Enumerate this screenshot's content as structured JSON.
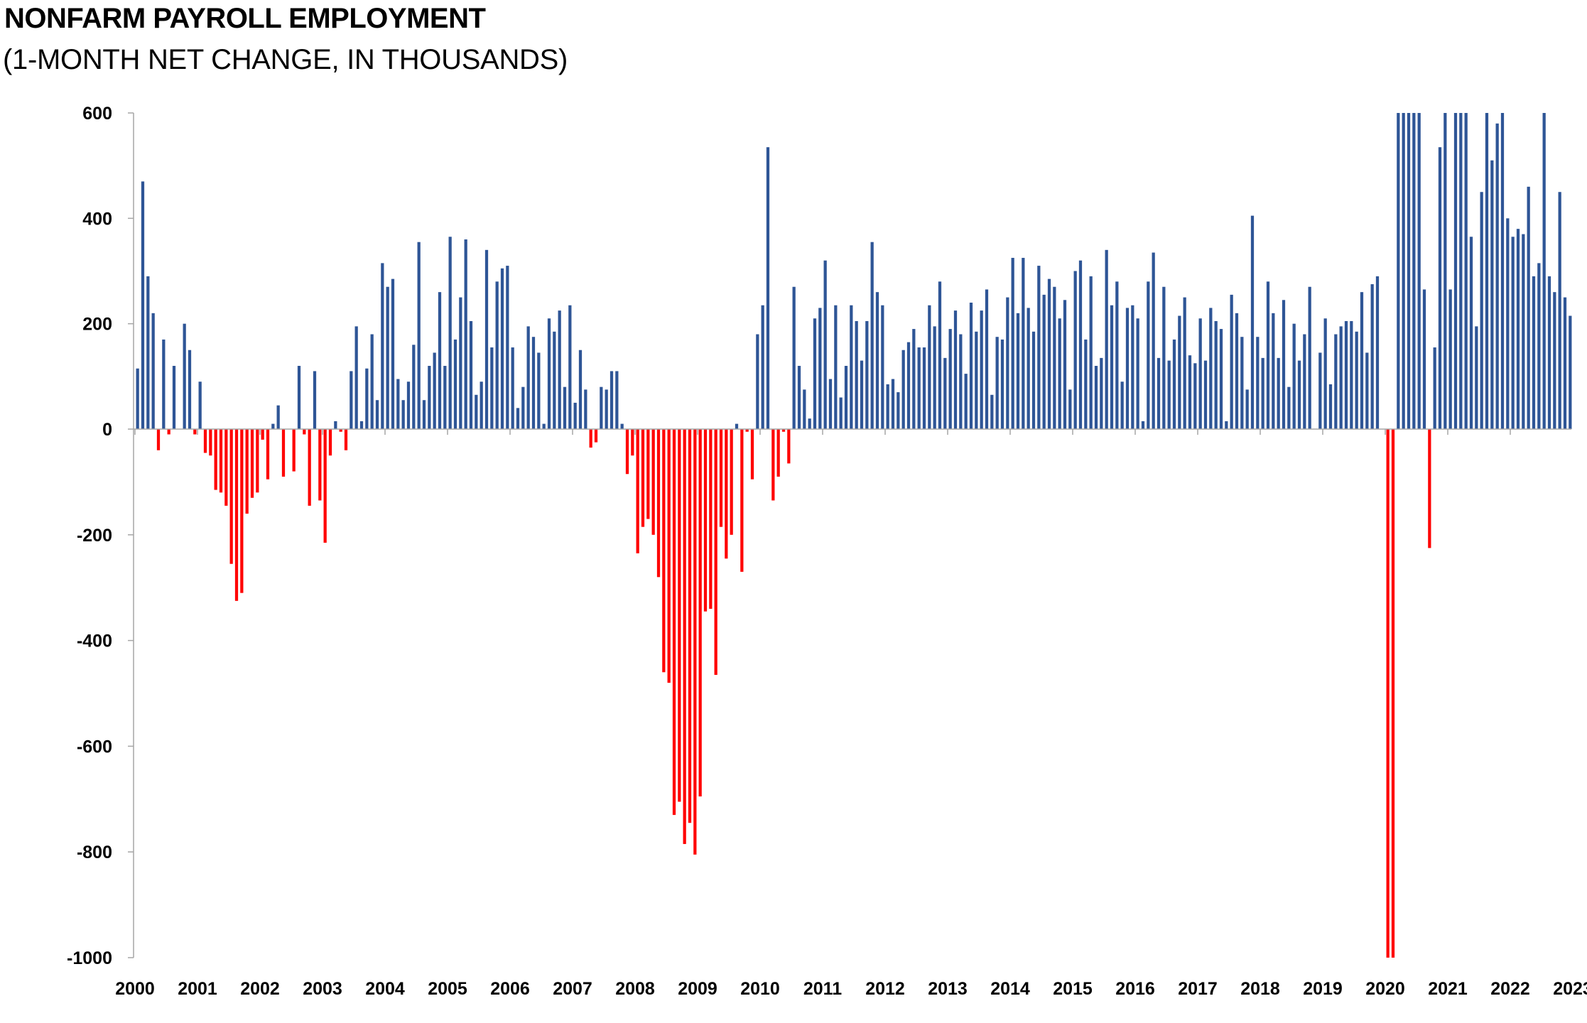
{
  "chart_data": {
    "type": "bar",
    "title": "NONFARM PAYROLL EMPLOYMENT",
    "subtitle": "(1-MONTH NET CHANGE, IN THOUSANDS)",
    "xlabel": "",
    "ylabel": "",
    "ylim": [
      -1000,
      600
    ],
    "yticks": [
      "600",
      "400",
      "200",
      "0",
      "-200",
      "-400",
      "-600",
      "-800",
      "-1000"
    ],
    "xticks": [
      "2000",
      "2001",
      "2002",
      "2003",
      "2004",
      "2005",
      "2006",
      "2007",
      "2008",
      "2009",
      "2010",
      "2011",
      "2012",
      "2013",
      "2014",
      "2015",
      "2016",
      "2017",
      "2018",
      "2019",
      "2020",
      "2021",
      "2022",
      "2023"
    ],
    "start": "2000-01",
    "frequency": "monthly",
    "positive_color": "#2e5596",
    "negative_color": "#ff0000",
    "grid": false,
    "legend": "none",
    "values": [
      115,
      470,
      290,
      220,
      -40,
      170,
      -10,
      120,
      0,
      200,
      150,
      -10,
      90,
      -45,
      -50,
      -115,
      -120,
      -145,
      -255,
      -325,
      -310,
      -160,
      -130,
      -120,
      -20,
      -95,
      10,
      45,
      -90,
      0,
      -80,
      120,
      -10,
      -145,
      110,
      -135,
      -215,
      -50,
      15,
      -5,
      -40,
      110,
      195,
      15,
      115,
      180,
      55,
      315,
      270,
      285,
      95,
      55,
      90,
      160,
      355,
      55,
      120,
      145,
      260,
      120,
      365,
      170,
      250,
      360,
      205,
      65,
      90,
      340,
      155,
      280,
      305,
      310,
      155,
      40,
      80,
      195,
      175,
      145,
      10,
      210,
      185,
      225,
      80,
      235,
      50,
      150,
      75,
      -35,
      -25,
      80,
      75,
      110,
      110,
      10,
      -85,
      -50,
      -235,
      -185,
      -170,
      -200,
      -280,
      -460,
      -480,
      -730,
      -705,
      -785,
      -745,
      -805,
      -695,
      -345,
      -340,
      -465,
      -185,
      -245,
      -200,
      10,
      -270,
      -5,
      -95,
      180,
      235,
      535,
      -135,
      -90,
      -5,
      -65,
      270,
      120,
      75,
      20,
      210,
      230,
      320,
      95,
      235,
      60,
      120,
      235,
      205,
      130,
      205,
      355,
      260,
      235,
      85,
      95,
      70,
      150,
      165,
      190,
      155,
      155,
      235,
      195,
      280,
      135,
      190,
      225,
      180,
      105,
      240,
      185,
      225,
      265,
      65,
      175,
      170,
      250,
      325,
      220,
      325,
      230,
      185,
      310,
      255,
      285,
      270,
      210,
      245,
      75,
      300,
      320,
      170,
      290,
      120,
      135,
      340,
      235,
      280,
      90,
      230,
      235,
      210,
      15,
      280,
      335,
      135,
      270,
      130,
      170,
      215,
      250,
      140,
      125,
      210,
      130,
      230,
      205,
      190,
      15,
      255,
      220,
      175,
      75,
      405,
      175,
      135,
      280,
      220,
      135,
      245,
      80,
      200,
      130,
      180,
      270,
      0,
      145,
      210,
      85,
      180,
      195,
      205,
      205,
      185,
      260,
      145,
      275,
      290,
      0,
      -1000,
      -1000,
      600,
      600,
      600,
      600,
      600,
      265,
      -225,
      155,
      535,
      600,
      265,
      600,
      600,
      600,
      365,
      195,
      450,
      600,
      510,
      580,
      600,
      400,
      365,
      380,
      370,
      460,
      290,
      315,
      600,
      290,
      260,
      450,
      250,
      215
    ]
  }
}
